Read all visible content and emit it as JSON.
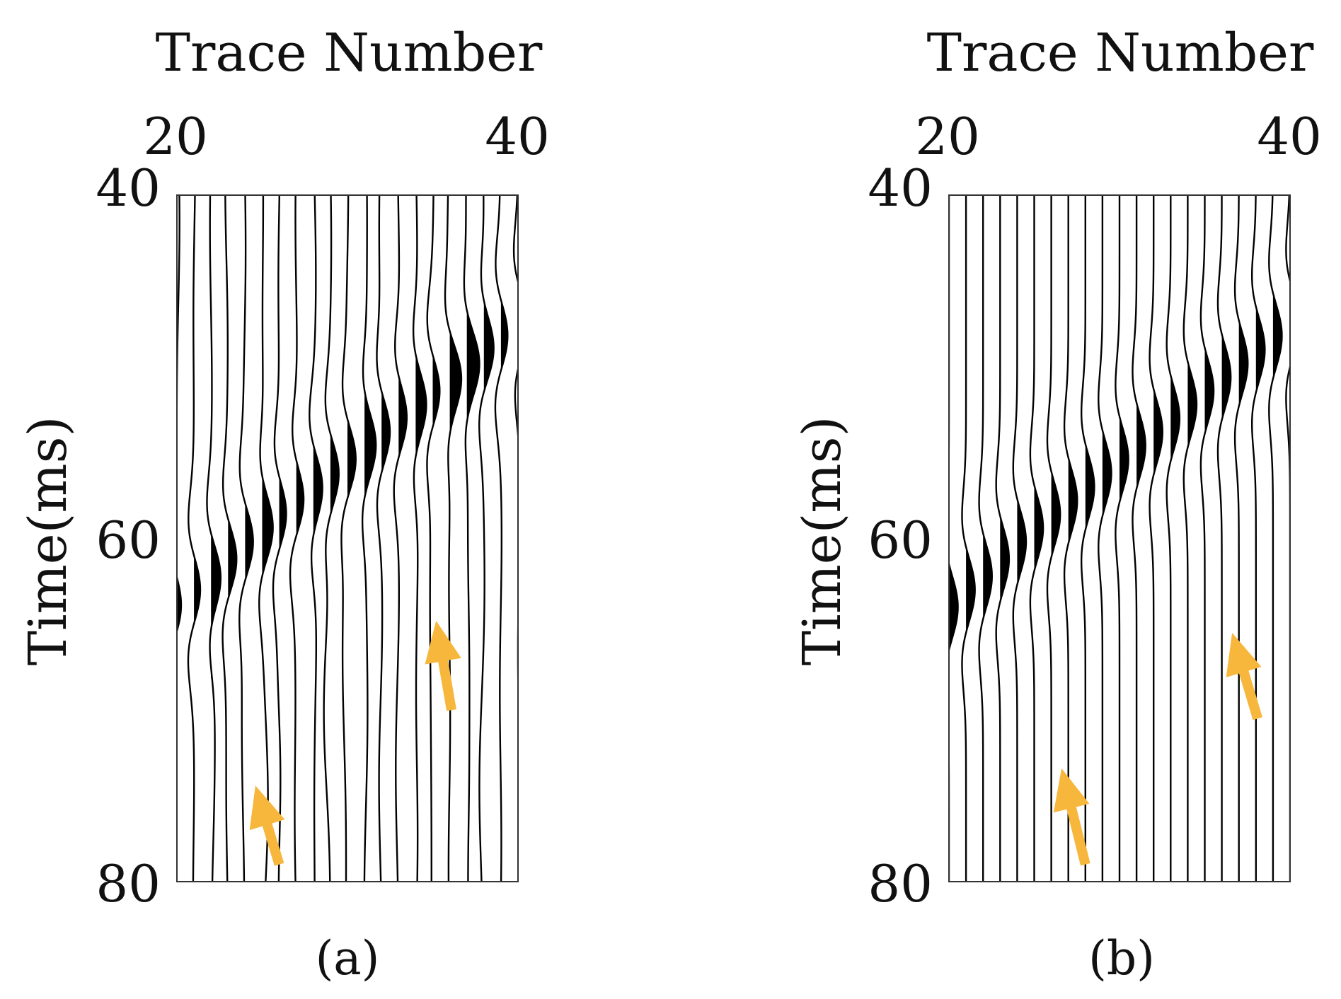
{
  "chart_data": [
    {
      "type": "wiggle",
      "panel_label": "(a)",
      "xlabel": "Trace Number",
      "ylabel": "Time(ms)",
      "xlim": [
        20,
        40
      ],
      "ylim": [
        40,
        80
      ],
      "x_ticks": [
        20,
        40
      ],
      "y_ticks": [
        40,
        60,
        80
      ],
      "y_reversed": true,
      "x_axis_position": "top",
      "grid": false,
      "traces": [
        20,
        21,
        22,
        23,
        24,
        25,
        26,
        27,
        28,
        29,
        30,
        31,
        32,
        33,
        34,
        35,
        36,
        37,
        38,
        39,
        40
      ],
      "event_times_ms": [
        64,
        63,
        62.2,
        61.2,
        60.2,
        59.4,
        58.6,
        57.8,
        57,
        56.2,
        55.4,
        54.6,
        53.8,
        53,
        52.2,
        51.4,
        50.6,
        49.8,
        49,
        48.2,
        47.5
      ],
      "event_amplitude": 0.95,
      "event_color": "#000000",
      "noise": "present",
      "annotations": [
        {
          "type": "arrow",
          "color": "#F6B73C",
          "tail": [
            26.0,
            79.0
          ],
          "head": [
            24.6,
            74.4
          ]
        },
        {
          "type": "arrow",
          "color": "#F6B73C",
          "tail": [
            36.1,
            70.0
          ],
          "head": [
            35.2,
            64.8
          ]
        }
      ]
    },
    {
      "type": "wiggle",
      "panel_label": "(b)",
      "xlabel": "Trace Number",
      "ylabel": "Time(ms)",
      "xlim": [
        20,
        40
      ],
      "ylim": [
        40,
        80
      ],
      "x_ticks": [
        20,
        40
      ],
      "y_ticks": [
        40,
        60,
        80
      ],
      "y_reversed": true,
      "x_axis_position": "top",
      "grid": false,
      "traces": [
        20,
        21,
        22,
        23,
        24,
        25,
        26,
        27,
        28,
        29,
        30,
        31,
        32,
        33,
        34,
        35,
        36,
        37,
        38,
        39,
        40
      ],
      "event_times_ms": [
        64,
        63,
        62.2,
        61.2,
        60.2,
        59.4,
        58.6,
        57.8,
        57,
        56.2,
        55.4,
        54.6,
        53.8,
        53,
        52.2,
        51.4,
        50.6,
        49.8,
        49,
        48.2,
        47.5
      ],
      "event_amplitude": 0.95,
      "event_color": "#000000",
      "noise": "attenuated",
      "annotations": [
        {
          "type": "arrow",
          "color": "#F6B73C",
          "tail": [
            28.0,
            79.0
          ],
          "head": [
            26.6,
            73.4
          ]
        },
        {
          "type": "arrow",
          "color": "#F6B73C",
          "tail": [
            38.1,
            70.5
          ],
          "head": [
            36.6,
            65.5
          ]
        }
      ]
    }
  ]
}
